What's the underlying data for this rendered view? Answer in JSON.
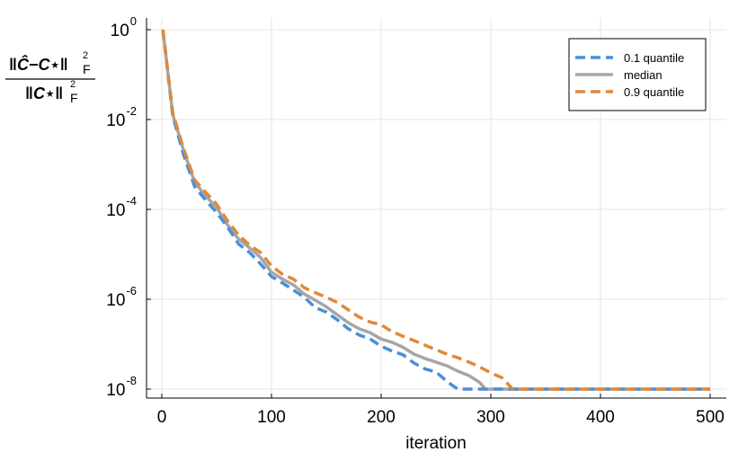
{
  "chart_data": {
    "type": "line",
    "title": "",
    "xlabel": "iteration",
    "ylabel": {
      "numerator": "‖Ĉ−C⋆‖",
      "denominator": "‖C⋆‖",
      "subscript": "F",
      "superscript": "2"
    },
    "xlim": [
      0,
      500
    ],
    "ylim": [
      1e-08,
      1
    ],
    "yscale": "log",
    "xticks": [
      0,
      100,
      200,
      300,
      400,
      500
    ],
    "xtick_labels": [
      "0",
      "100",
      "200",
      "300",
      "400",
      "500"
    ],
    "yticks": [
      1,
      0.01,
      0.0001,
      1e-06,
      1e-08
    ],
    "ytick_labels": [
      {
        "base": "10",
        "exp": "0"
      },
      {
        "base": "10",
        "exp": "-2"
      },
      {
        "base": "10",
        "exp": "-4"
      },
      {
        "base": "10",
        "exp": "-6"
      },
      {
        "base": "10",
        "exp": "-8"
      }
    ],
    "grid": true,
    "legend_position": "top-right",
    "series": [
      {
        "name": "0.1 quantile",
        "color": "#4a90d9",
        "style": "dashed",
        "x": [
          1,
          10,
          20,
          30,
          40,
          50,
          60,
          70,
          80,
          90,
          100,
          110,
          120,
          130,
          140,
          150,
          160,
          170,
          180,
          190,
          200,
          210,
          220,
          230,
          240,
          250,
          260,
          265,
          270,
          275,
          280,
          290,
          300,
          350,
          400,
          450,
          500
        ],
        "y": [
          1,
          0.012,
          0.0016,
          0.00032,
          0.00016,
          8.5e-05,
          4e-05,
          1.7e-05,
          1.1e-05,
          6.1e-06,
          3.2e-06,
          2.3e-06,
          1.6e-06,
          1.1e-06,
          6.5e-07,
          5.2e-07,
          3.5e-07,
          2.2e-07,
          1.6e-07,
          1.3e-07,
          9e-08,
          7e-08,
          5.8e-08,
          3.8e-08,
          2.8e-08,
          2.4e-08,
          1.5e-08,
          1.2e-08,
          1e-08,
          1e-08,
          1e-08,
          1e-08,
          1e-08,
          1e-08,
          1e-08,
          1e-08,
          1e-08
        ]
      },
      {
        "name": "median",
        "color": "#a6a6a6",
        "style": "solid",
        "x": [
          1,
          10,
          20,
          30,
          40,
          50,
          60,
          70,
          80,
          90,
          100,
          110,
          120,
          130,
          140,
          150,
          160,
          170,
          180,
          190,
          200,
          210,
          220,
          230,
          240,
          250,
          260,
          270,
          280,
          290,
          295,
          300,
          350,
          400,
          450,
          500
        ],
        "y": [
          1,
          0.013,
          0.002,
          0.0004,
          0.0002,
          0.00011,
          4.5e-05,
          2.2e-05,
          1.4e-05,
          8.5e-06,
          4e-06,
          2.8e-06,
          2.1e-06,
          1.3e-06,
          9.5e-07,
          6.8e-07,
          4.5e-07,
          3e-07,
          2.2e-07,
          1.8e-07,
          1.3e-07,
          1.1e-07,
          8.5e-08,
          6e-08,
          4.8e-08,
          4e-08,
          3.3e-08,
          2.5e-08,
          2e-08,
          1.4e-08,
          1e-08,
          1e-08,
          1e-08,
          1e-08,
          1e-08,
          1e-08
        ]
      },
      {
        "name": "0.9 quantile",
        "color": "#e0893b",
        "style": "dashed",
        "x": [
          1,
          10,
          20,
          30,
          40,
          50,
          60,
          70,
          80,
          90,
          100,
          110,
          120,
          130,
          140,
          150,
          160,
          170,
          180,
          190,
          200,
          210,
          220,
          230,
          240,
          250,
          260,
          270,
          280,
          290,
          300,
          310,
          320,
          350,
          400,
          450,
          500
        ],
        "y": [
          1,
          0.014,
          0.0022,
          0.00045,
          0.00024,
          0.00013,
          5.5e-05,
          2.7e-05,
          1.6e-05,
          1.1e-05,
          5.5e-06,
          3.6e-06,
          2.8e-06,
          1.8e-06,
          1.4e-06,
          1.1e-06,
          8.5e-07,
          5.8e-07,
          4e-07,
          3.1e-07,
          2.7e-07,
          1.9e-07,
          1.5e-07,
          1.2e-07,
          9.5e-08,
          7.5e-08,
          6e-08,
          5e-08,
          4e-08,
          3.1e-08,
          2.3e-08,
          1.8e-08,
          1e-08,
          1e-08,
          1e-08,
          1e-08,
          1e-08
        ]
      }
    ]
  }
}
